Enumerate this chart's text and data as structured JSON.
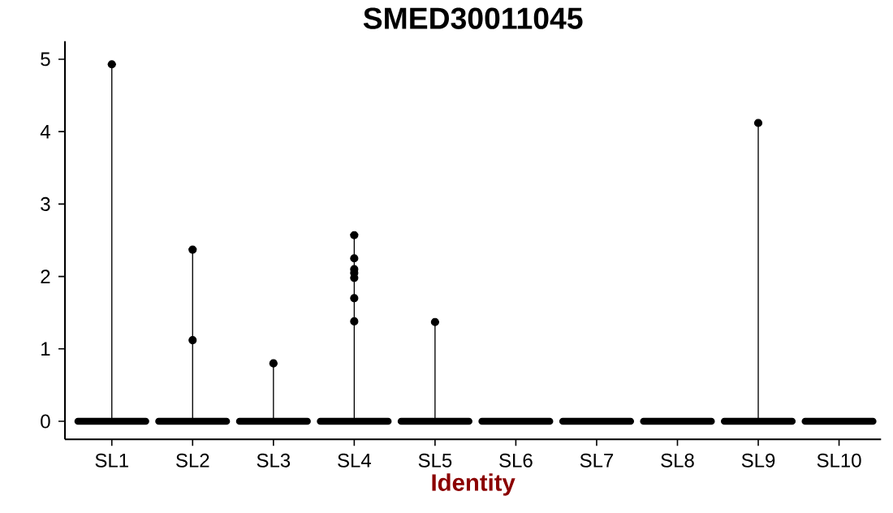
{
  "chart_data": {
    "type": "box",
    "title": "SMED30011045",
    "xlabel": "Identity",
    "categories": [
      "SL1",
      "SL2",
      "SL3",
      "SL4",
      "SL5",
      "SL6",
      "SL7",
      "SL8",
      "SL9",
      "SL10"
    ],
    "ylim": [
      -0.25,
      5.25
    ],
    "yticks": [
      0,
      1,
      2,
      3,
      4,
      5
    ],
    "grid": false,
    "series": [
      {
        "type": "box",
        "color": "#000000",
        "boxes": [
          {
            "low": 0,
            "q1": 0,
            "median": 0,
            "q3": 0,
            "high": 4.93
          },
          {
            "low": 0,
            "q1": 0,
            "median": 0,
            "q3": 0,
            "high": 2.38
          },
          {
            "low": 0,
            "q1": 0,
            "median": 0,
            "q3": 0,
            "high": 0.8
          },
          {
            "low": 0,
            "q1": 0,
            "median": 0,
            "q3": 0,
            "high": 2.58
          },
          {
            "low": 0,
            "q1": 0,
            "median": 0,
            "q3": 0,
            "high": 1.37
          },
          {
            "low": 0,
            "q1": 0,
            "median": 0,
            "q3": 0,
            "high": 0
          },
          {
            "low": 0,
            "q1": 0,
            "median": 0,
            "q3": 0,
            "high": 0
          },
          {
            "low": 0,
            "q1": 0,
            "median": 0,
            "q3": 0,
            "high": 0
          },
          {
            "low": 0,
            "q1": 0,
            "median": 0,
            "q3": 0,
            "high": 4.12
          },
          {
            "low": 0,
            "q1": 0,
            "median": 0,
            "q3": 0,
            "high": 0
          }
        ]
      },
      {
        "type": "scatter",
        "color": "#000000",
        "x": [
          "SL1",
          "SL2",
          "SL2",
          "SL3",
          "SL4",
          "SL4",
          "SL4",
          "SL4",
          "SL4",
          "SL4",
          "SL4",
          "SL5",
          "SL9"
        ],
        "values": [
          4.93,
          1.12,
          2.37,
          0.8,
          2.25,
          1.7,
          1.98,
          2.57,
          2.1,
          1.38,
          2.05,
          1.37,
          4.12
        ]
      }
    ]
  }
}
